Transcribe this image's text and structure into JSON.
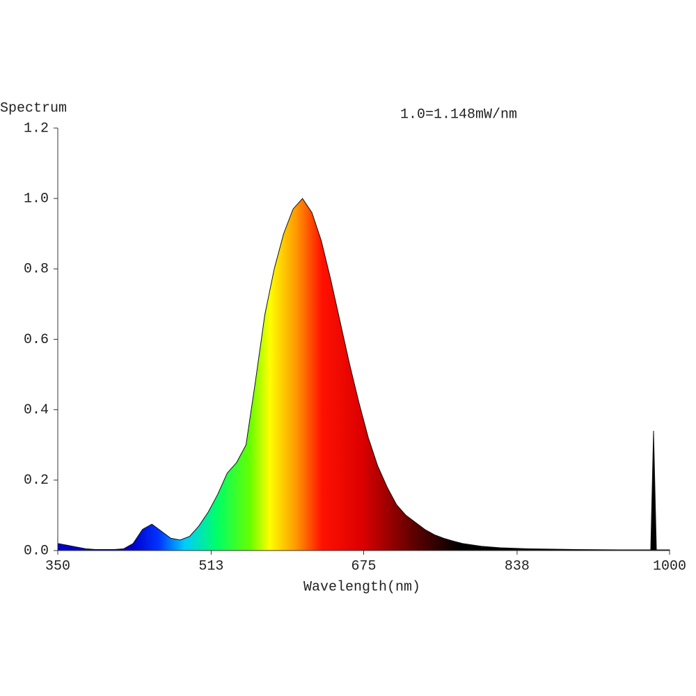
{
  "chart_data": {
    "type": "area",
    "y_label": "Spectrum",
    "x_label": "Wavelength(nm)",
    "annotation": "1.0=1.148mW/nm",
    "x": [
      350,
      360,
      370,
      380,
      390,
      400,
      410,
      420,
      430,
      440,
      450,
      460,
      470,
      480,
      490,
      500,
      510,
      520,
      530,
      540,
      550,
      560,
      570,
      580,
      590,
      600,
      610,
      620,
      630,
      640,
      650,
      660,
      670,
      680,
      690,
      700,
      710,
      720,
      730,
      740,
      750,
      760,
      770,
      780,
      790,
      800,
      820,
      850,
      900,
      950,
      980,
      983,
      986,
      1000
    ],
    "values": [
      0.02,
      0.015,
      0.01,
      0.005,
      0.003,
      0.003,
      0.003,
      0.005,
      0.02,
      0.06,
      0.075,
      0.055,
      0.035,
      0.03,
      0.04,
      0.07,
      0.11,
      0.16,
      0.22,
      0.25,
      0.3,
      0.48,
      0.67,
      0.8,
      0.9,
      0.97,
      1.0,
      0.96,
      0.88,
      0.77,
      0.65,
      0.53,
      0.42,
      0.32,
      0.24,
      0.18,
      0.13,
      0.1,
      0.08,
      0.06,
      0.045,
      0.035,
      0.027,
      0.02,
      0.016,
      0.012,
      0.008,
      0.005,
      0.003,
      0.002,
      0.002,
      0.34,
      0.002,
      0.002
    ],
    "xlim": [
      350,
      1000
    ],
    "xticks": [
      350,
      513,
      675,
      838,
      1000
    ],
    "ylim": [
      0,
      1.2
    ],
    "yticks": [
      {
        "value": 0,
        "label": "0.0"
      },
      0.2,
      0.4,
      0.6,
      0.8,
      {
        "value": 1,
        "label": "1.0"
      },
      1.2
    ],
    "grid": false
  }
}
